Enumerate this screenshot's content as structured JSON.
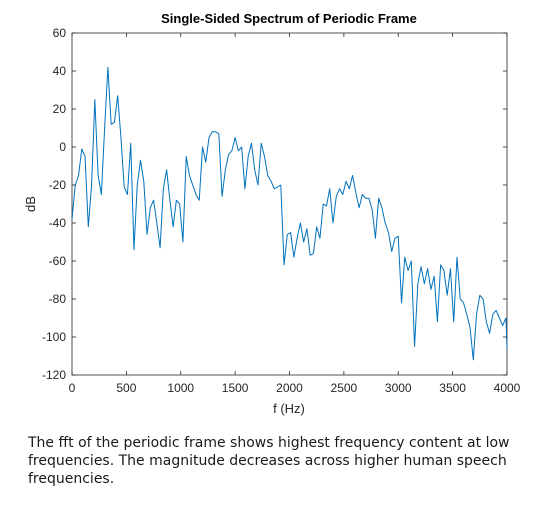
{
  "chart_data": {
    "type": "line",
    "title": "Single-Sided Spectrum of Periodic Frame",
    "xlabel": "f (Hz)",
    "ylabel": "dB",
    "xlim": [
      0,
      4000
    ],
    "ylim": [
      -120,
      60
    ],
    "xticks": [
      0,
      500,
      1000,
      1500,
      2000,
      2500,
      3000,
      3500,
      4000
    ],
    "yticks": [
      -120,
      -100,
      -80,
      -60,
      -40,
      -20,
      0,
      20,
      40,
      60
    ],
    "grid": false,
    "line_color": "#0072BD",
    "series": [
      {
        "x": [
          0,
          30,
          60,
          90,
          120,
          150,
          180,
          210,
          240,
          270,
          300,
          330,
          360,
          390,
          420,
          450,
          480,
          510,
          540,
          570,
          600,
          630,
          660,
          690,
          720,
          750,
          780,
          810,
          840,
          870,
          900,
          930,
          960,
          990,
          1020,
          1050,
          1080,
          1110,
          1140,
          1170,
          1200,
          1230,
          1260,
          1290,
          1320,
          1350,
          1380,
          1410,
          1440,
          1470,
          1500,
          1530,
          1560,
          1590,
          1620,
          1650,
          1680,
          1710,
          1740,
          1770,
          1800,
          1830,
          1860,
          1890,
          1920,
          1950,
          1980,
          2010,
          2040,
          2070,
          2100,
          2130,
          2160,
          2190,
          2220,
          2250,
          2280,
          2310,
          2340,
          2370,
          2400,
          2430,
          2460,
          2490,
          2520,
          2550,
          2580,
          2610,
          2640,
          2670,
          2700,
          2730,
          2760,
          2790,
          2820,
          2850,
          2880,
          2910,
          2940,
          2970,
          3000,
          3030,
          3060,
          3090,
          3120,
          3150,
          3180,
          3210,
          3240,
          3270,
          3300,
          3330,
          3360,
          3390,
          3420,
          3450,
          3480,
          3510,
          3540,
          3570,
          3600,
          3630,
          3660,
          3690,
          3720,
          3750,
          3780,
          3810,
          3840,
          3870,
          3900,
          3930,
          3960,
          3990,
          4000
        ],
        "y": [
          -38,
          -20,
          -15,
          -1,
          -5,
          -42,
          -20,
          25,
          -15,
          -25,
          10,
          42,
          12,
          13,
          27,
          5,
          -21,
          -25,
          2,
          -54,
          -20,
          -7,
          -18,
          -46,
          -32,
          -28,
          -40,
          -53,
          -22,
          -12,
          -28,
          -42,
          -28,
          -30,
          -50,
          -5,
          -15,
          -20,
          -25,
          -28,
          0,
          -8,
          5,
          8,
          8,
          7,
          -26,
          -12,
          -4,
          -2,
          5,
          -2,
          0,
          -22,
          -5,
          2,
          -12,
          -20,
          2,
          -5,
          -15,
          -18,
          -22,
          -21,
          -20,
          -62,
          -46,
          -45,
          -58,
          -48,
          -40,
          -50,
          -43,
          -57,
          -56,
          -42,
          -48,
          -30,
          -31,
          -22,
          -40,
          -26,
          -22,
          -25,
          -18,
          -22,
          -15,
          -24,
          -32,
          -25,
          -27,
          -27,
          -33,
          -48,
          -27,
          -32,
          -40,
          -45,
          -55,
          -48,
          -47,
          -82,
          -58,
          -65,
          -60,
          -105,
          -72,
          -63,
          -72,
          -64,
          -75,
          -68,
          -92,
          -62,
          -65,
          -78,
          -64,
          -92,
          -58,
          -80,
          -82,
          -88,
          -95,
          -112,
          -88,
          -78,
          -80,
          -92,
          -98,
          -88,
          -86,
          -90,
          -94,
          -90,
          -106
        ]
      }
    ]
  },
  "caption": "The fft of the periodic frame shows highest frequency content at low frequencies. The magnitude decreases across higher human speech frequencies."
}
